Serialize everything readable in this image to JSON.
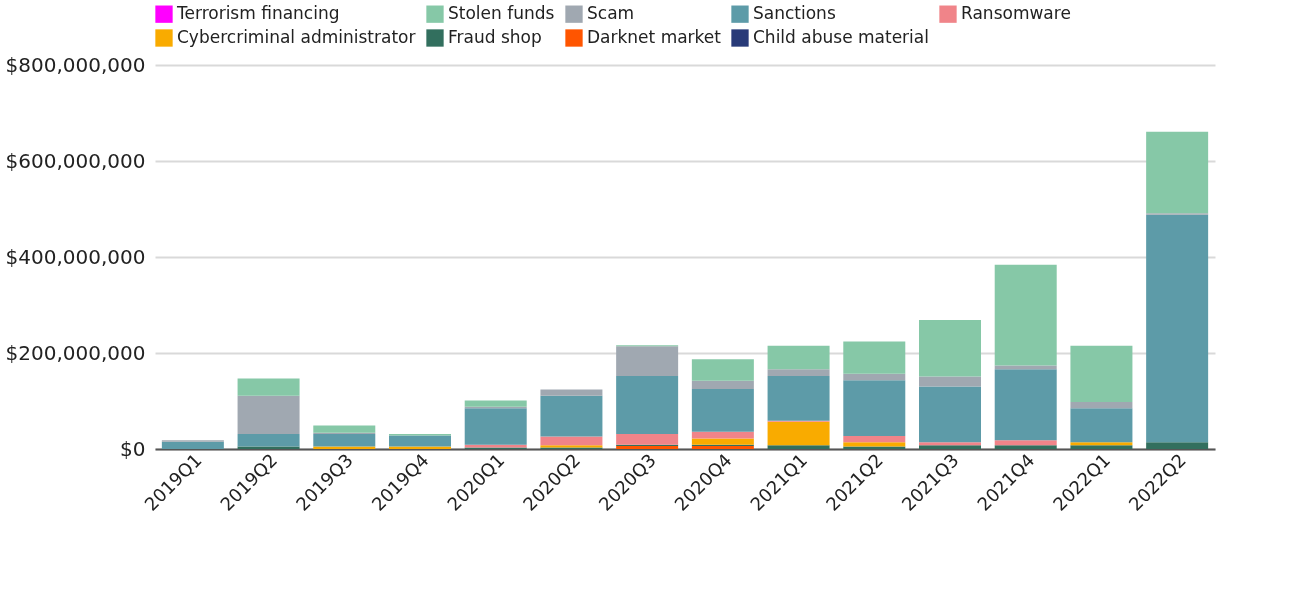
{
  "chart_data": {
    "type": "bar",
    "stacked": true,
    "categories": [
      "2019Q1",
      "2019Q2",
      "2019Q3",
      "2019Q4",
      "2020Q1",
      "2020Q2",
      "2020Q3",
      "2020Q4",
      "2021Q1",
      "2021Q2",
      "2021Q3",
      "2021Q4",
      "2022Q1",
      "2022Q2"
    ],
    "series": [
      {
        "name": "Child abuse material",
        "color": "#283a78",
        "values": [
          0,
          0,
          0,
          0,
          0,
          0,
          0,
          0,
          0,
          0,
          0,
          0,
          0,
          0
        ]
      },
      {
        "name": "Darknet market",
        "color": "#ff5500",
        "values": [
          0,
          0,
          0,
          0,
          0,
          0,
          6000000,
          6000000,
          0,
          0,
          0,
          0,
          0,
          0
        ]
      },
      {
        "name": "Fraud shop",
        "color": "#326f5e",
        "values": [
          0,
          5000000,
          0,
          0,
          3000000,
          3000000,
          3000000,
          3000000,
          8000000,
          5000000,
          8000000,
          8000000,
          8000000,
          14000000
        ]
      },
      {
        "name": "Cybercriminal administrator",
        "color": "#f9ab00",
        "values": [
          0,
          0,
          5000000,
          5000000,
          0,
          5000000,
          0,
          13000000,
          49000000,
          9000000,
          0,
          0,
          6000000,
          0
        ]
      },
      {
        "name": "Ransomware",
        "color": "#f08489",
        "values": [
          0,
          0,
          0,
          0,
          6000000,
          18000000,
          22000000,
          14000000,
          2000000,
          13000000,
          6000000,
          10000000,
          0,
          0
        ]
      },
      {
        "name": "Sanctions",
        "color": "#5d9ba8",
        "values": [
          15000000,
          26000000,
          26000000,
          23000000,
          76000000,
          85000000,
          121000000,
          89000000,
          93000000,
          116000000,
          116000000,
          148000000,
          71000000,
          474000000
        ]
      },
      {
        "name": "Scam",
        "color": "#a0a8b1",
        "values": [
          3000000,
          80000000,
          3000000,
          0,
          3000000,
          13000000,
          62000000,
          17000000,
          14000000,
          14000000,
          21000000,
          8000000,
          13000000,
          3000000
        ]
      },
      {
        "name": "Stolen funds",
        "color": "#86c8a7",
        "values": [
          0,
          36000000,
          15000000,
          3000000,
          13000000,
          0,
          2000000,
          45000000,
          49000000,
          67000000,
          118000000,
          210000000,
          117000000,
          170000000
        ]
      },
      {
        "name": "Terrorism financing",
        "color": "#ff00ff",
        "values": [
          0,
          0,
          0,
          0,
          0,
          0,
          0,
          0,
          0,
          0,
          0,
          0,
          0,
          0
        ]
      }
    ],
    "ylim": [
      0,
      800000000
    ],
    "yticks": [
      {
        "value": 0,
        "label": "$0"
      },
      {
        "value": 200000000,
        "label": "$200,000,000"
      },
      {
        "value": 400000000,
        "label": "$400,000,000"
      },
      {
        "value": 600000000,
        "label": "$600,000,000"
      },
      {
        "value": 800000000,
        "label": "$800,000,000"
      }
    ],
    "grid": "y",
    "legend": "top"
  }
}
